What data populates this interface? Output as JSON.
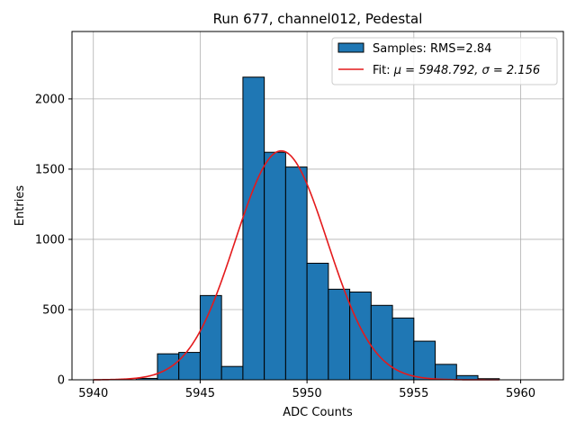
{
  "chart_data": {
    "type": "bar",
    "title": "Run 677, channel012, Pedestal",
    "xlabel": "ADC Counts",
    "ylabel": "Entries",
    "xlim": [
      5939,
      5962
    ],
    "ylim": [
      0,
      2480
    ],
    "grid": true,
    "xticks": [
      5940,
      5945,
      5950,
      5955,
      5960
    ],
    "yticks": [
      0,
      500,
      1000,
      1500,
      2000
    ],
    "histogram": {
      "name": "Samples: RMS=2.84",
      "color": "#1f77b4",
      "edge_color": "#000000",
      "bin_edges": [
        5942,
        5943,
        5944,
        5945,
        5946,
        5947,
        5948,
        5949,
        5950,
        5951,
        5952,
        5953,
        5954,
        5955,
        5956,
        5957,
        5958,
        5959
      ],
      "counts": [
        10,
        185,
        195,
        600,
        95,
        2155,
        1620,
        1515,
        830,
        645,
        625,
        530,
        440,
        275,
        110,
        30,
        8
      ]
    },
    "fit": {
      "name": "Fit: μ = 5948.792, σ = 2.156",
      "label_prefix": "Fit: ",
      "mu_label": "μ = 5948.792, ",
      "sigma_label": "σ = 2.156",
      "color": "#e41a1c",
      "mu": 5948.792,
      "sigma": 2.156,
      "amplitude": 1630,
      "x_range": [
        5940,
        5959
      ]
    },
    "legend_position": "top-right"
  }
}
